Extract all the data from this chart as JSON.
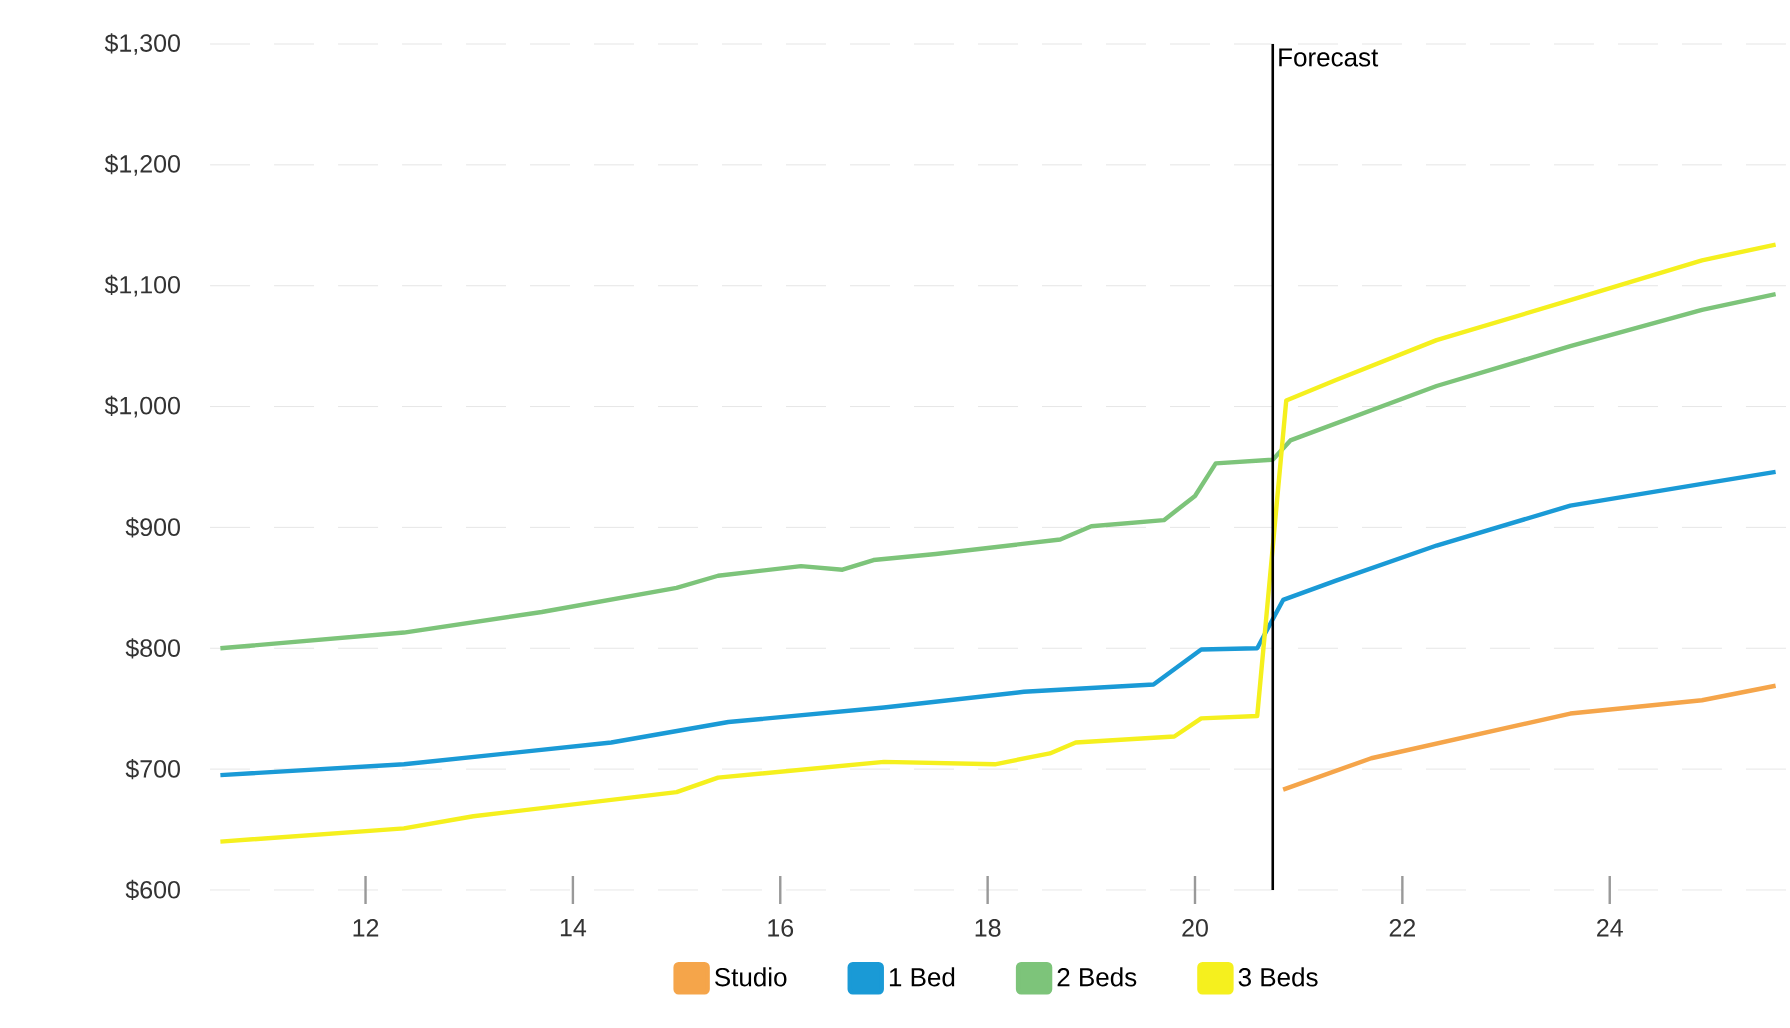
{
  "chart_data": {
    "type": "line",
    "xlim": [
      10.5,
      25.7
    ],
    "ylim": [
      600,
      1300
    ],
    "xticks": [
      12,
      14,
      16,
      18,
      20,
      22,
      24
    ],
    "yticks": [
      {
        "value": 600,
        "label": "$600"
      },
      {
        "value": 700,
        "label": "$700"
      },
      {
        "value": 800,
        "label": "$800"
      },
      {
        "value": 900,
        "label": "$900"
      },
      {
        "value": 1000,
        "label": "$1,000"
      },
      {
        "value": 1100,
        "label": "$1,100"
      },
      {
        "value": 1200,
        "label": "$1,200"
      },
      {
        "value": 1300,
        "label": "$1,300"
      }
    ],
    "grid": "y",
    "legend": "bottom",
    "ref_lines": [
      {
        "axis": "x",
        "value": 20.75,
        "label": "Forecast",
        "color": "#000000"
      }
    ],
    "series": [
      {
        "name": "Studio",
        "color": "#f5a54a",
        "x": [
          20.85,
          21.7,
          23.62,
          24.89,
          25.6
        ],
        "values": [
          683,
          709,
          746,
          757,
          769
        ]
      },
      {
        "name": "1 Bed",
        "color": "#1a9ad6",
        "x": [
          10.6,
          12.37,
          14.37,
          15.5,
          17.0,
          18.35,
          19.6,
          20.06,
          20.6,
          20.85,
          21.36,
          22.33,
          23.62,
          24.89,
          25.6
        ],
        "values": [
          695,
          704,
          722,
          739,
          751,
          764,
          770,
          799,
          800,
          840,
          856,
          885,
          918,
          936,
          946
        ]
      },
      {
        "name": "2 Beds",
        "color": "#7dc47a",
        "x": [
          10.6,
          12.37,
          13.7,
          15.0,
          15.4,
          16.2,
          16.6,
          16.9,
          17.5,
          18.7,
          19.0,
          19.7,
          20.0,
          20.2,
          20.75,
          20.92,
          22.33,
          23.62,
          24.89,
          25.6
        ],
        "values": [
          800,
          813,
          830,
          850,
          860,
          868,
          865,
          873,
          878,
          890,
          901,
          906,
          926,
          953,
          956,
          972,
          1017,
          1050,
          1080,
          1093
        ]
      },
      {
        "name": "3 Beds",
        "color": "#f5f01e",
        "x": [
          10.6,
          12.37,
          13.04,
          15.0,
          15.4,
          17.0,
          18.07,
          18.6,
          18.85,
          19.8,
          20.06,
          20.6,
          20.88,
          21.36,
          22.33,
          23.62,
          24.89,
          25.6
        ],
        "values": [
          640,
          651,
          661,
          681,
          693,
          706,
          704,
          713,
          722,
          727,
          742,
          744,
          1005,
          1022,
          1055,
          1088,
          1121,
          1134
        ]
      }
    ]
  }
}
